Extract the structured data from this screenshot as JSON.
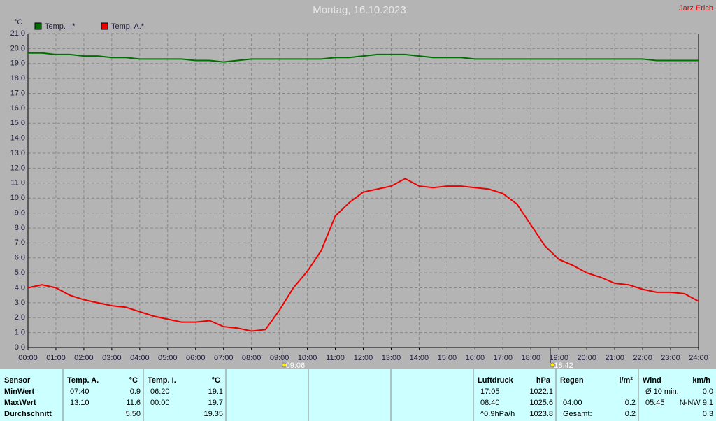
{
  "chart_data": {
    "type": "line",
    "title": "Montag, 16.10.2023",
    "author": "Jarz Erich",
    "y_unit": "°C",
    "grid": true,
    "xlim": [
      0,
      24
    ],
    "ylim": [
      0,
      21
    ],
    "xticks": [
      {
        "value": 0,
        "label": "00:00"
      },
      {
        "value": 1,
        "label": "01:00"
      },
      {
        "value": 2,
        "label": "02:00"
      },
      {
        "value": 3,
        "label": "03:00"
      },
      {
        "value": 4,
        "label": "04:00"
      },
      {
        "value": 5,
        "label": "05:00"
      },
      {
        "value": 6,
        "label": "06:00"
      },
      {
        "value": 7,
        "label": "07:00"
      },
      {
        "value": 8,
        "label": "08:00"
      },
      {
        "value": 9,
        "label": "09:00"
      },
      {
        "value": 10,
        "label": "10:00"
      },
      {
        "value": 11,
        "label": "11:00"
      },
      {
        "value": 12,
        "label": "12:00"
      },
      {
        "value": 13,
        "label": "13:00"
      },
      {
        "value": 14,
        "label": "14:00"
      },
      {
        "value": 15,
        "label": "15:00"
      },
      {
        "value": 16,
        "label": "16:00"
      },
      {
        "value": 17,
        "label": "17:00"
      },
      {
        "value": 18,
        "label": "18:00"
      },
      {
        "value": 19,
        "label": "19:00"
      },
      {
        "value": 20,
        "label": "20:00"
      },
      {
        "value": 21,
        "label": "21:00"
      },
      {
        "value": 22,
        "label": "22:00"
      },
      {
        "value": 23,
        "label": "23:00"
      },
      {
        "value": 24,
        "label": "24:00"
      }
    ],
    "yticks": [
      {
        "value": 0,
        "label": "0.0"
      },
      {
        "value": 1,
        "label": "1.0"
      },
      {
        "value": 2,
        "label": "2.0"
      },
      {
        "value": 3,
        "label": "3.0"
      },
      {
        "value": 4,
        "label": "4.0"
      },
      {
        "value": 5,
        "label": "5.0"
      },
      {
        "value": 6,
        "label": "6.0"
      },
      {
        "value": 7,
        "label": "7.0"
      },
      {
        "value": 8,
        "label": "8.0"
      },
      {
        "value": 9,
        "label": "9.0"
      },
      {
        "value": 10,
        "label": "10.0"
      },
      {
        "value": 11,
        "label": "11.0"
      },
      {
        "value": 12,
        "label": "12.0"
      },
      {
        "value": 13,
        "label": "13.0"
      },
      {
        "value": 14,
        "label": "14.0"
      },
      {
        "value": 15,
        "label": "15.0"
      },
      {
        "value": 16,
        "label": "16.0"
      },
      {
        "value": 17,
        "label": "17.0"
      },
      {
        "value": 18,
        "label": "18.0"
      },
      {
        "value": 19,
        "label": "19.0"
      },
      {
        "value": 20,
        "label": "20.0"
      },
      {
        "value": 21,
        "label": "21.0"
      }
    ],
    "x": [
      0,
      0.5,
      1,
      1.5,
      2,
      2.5,
      3,
      3.5,
      4,
      4.5,
      5,
      5.5,
      6,
      6.5,
      7,
      7.5,
      8,
      8.5,
      9,
      9.5,
      10,
      10.5,
      11,
      11.5,
      12,
      12.5,
      13,
      13.5,
      14,
      14.5,
      15,
      15.5,
      16,
      16.5,
      17,
      17.5,
      18,
      18.5,
      19,
      19.5,
      20,
      20.5,
      21,
      21.5,
      22,
      22.5,
      23,
      23.5,
      24
    ],
    "series": [
      {
        "name": "Temp. I.*",
        "color": "#007000",
        "values": [
          19.7,
          19.7,
          19.6,
          19.6,
          19.5,
          19.5,
          19.4,
          19.4,
          19.3,
          19.3,
          19.3,
          19.3,
          19.2,
          19.2,
          19.1,
          19.2,
          19.3,
          19.3,
          19.3,
          19.3,
          19.3,
          19.3,
          19.4,
          19.4,
          19.5,
          19.6,
          19.6,
          19.6,
          19.5,
          19.4,
          19.4,
          19.4,
          19.3,
          19.3,
          19.3,
          19.3,
          19.3,
          19.3,
          19.3,
          19.3,
          19.3,
          19.3,
          19.3,
          19.3,
          19.3,
          19.2,
          19.2,
          19.2,
          19.2
        ]
      },
      {
        "name": "Temp. A.*",
        "color": "#ee0000",
        "values": [
          4.0,
          4.2,
          4.0,
          3.5,
          3.2,
          3.0,
          2.8,
          2.7,
          2.4,
          2.1,
          1.9,
          1.7,
          1.7,
          1.8,
          1.4,
          1.3,
          1.1,
          1.2,
          2.5,
          4.0,
          5.1,
          6.5,
          8.8,
          9.7,
          10.4,
          10.6,
          10.8,
          11.3,
          10.8,
          10.7,
          10.8,
          10.8,
          10.7,
          10.6,
          10.3,
          9.6,
          8.2,
          6.8,
          5.9,
          5.5,
          5.0,
          4.7,
          4.3,
          4.2,
          3.9,
          3.7,
          3.7,
          3.6,
          3.1
        ]
      }
    ],
    "annotations": [
      {
        "x": 9.1,
        "label": "09:06"
      },
      {
        "x": 18.7,
        "label": "18:42"
      }
    ]
  },
  "stats": [
    {
      "header": [
        "Sensor"
      ],
      "rows": [
        [
          "MinWert"
        ],
        [
          "MaxWert"
        ],
        [
          "Durchschnitt"
        ]
      ]
    },
    {
      "header": [
        "Temp. A.",
        "°C"
      ],
      "rows": [
        [
          "07:40",
          "0.9"
        ],
        [
          "13:10",
          "11.6"
        ],
        [
          null,
          "5.50"
        ]
      ]
    },
    {
      "header": [
        "Temp. I.",
        "°C"
      ],
      "rows": [
        [
          "06:20",
          "19.1"
        ],
        [
          "00:00",
          "19.7"
        ],
        [
          null,
          "19.35"
        ]
      ]
    },
    {
      "header": [
        "Luftdruck",
        "hPa"
      ],
      "rows": [
        [
          "17:05",
          "1022.1"
        ],
        [
          "08:40",
          "1025.6"
        ],
        [
          "^0.9hPa/h",
          "1023.8"
        ]
      ]
    },
    {
      "header": [
        "Regen",
        "l/m²"
      ],
      "rows": [
        [
          null,
          null
        ],
        [
          "04:00",
          "0.2"
        ],
        [
          "Gesamt:",
          "0.2"
        ]
      ]
    },
    {
      "header": [
        "Wind",
        "km/h"
      ],
      "rows": [
        [
          "Ø 10 min.",
          "0.0"
        ],
        [
          "05:45",
          "N-NW 9.1"
        ],
        [
          null,
          "0.3"
        ]
      ]
    }
  ]
}
